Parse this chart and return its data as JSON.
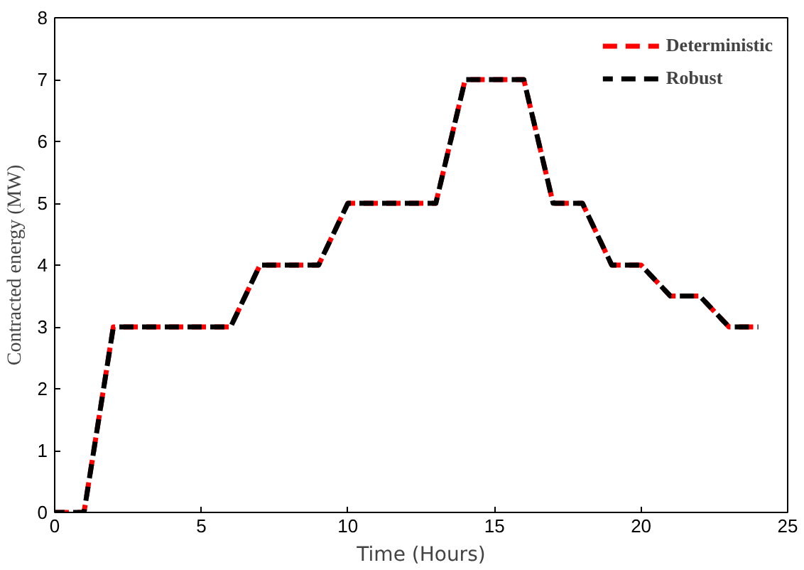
{
  "chart_data": {
    "type": "line",
    "xlabel": "Time (Hours)",
    "ylabel": "Contracted energy (MW)",
    "x": [
      0,
      1,
      2,
      3,
      4,
      5,
      6,
      7,
      8,
      9,
      10,
      11,
      12,
      13,
      14,
      15,
      16,
      17,
      18,
      19,
      20,
      21,
      22,
      23,
      24
    ],
    "series": [
      {
        "name": "Deterministic",
        "color": "#ff0000",
        "values": [
          0,
          0,
          3,
          3,
          3,
          3,
          3,
          4,
          4,
          4,
          5,
          5,
          5,
          5,
          7,
          7,
          7,
          5,
          5,
          4,
          4,
          3.5,
          3.5,
          3,
          3
        ]
      },
      {
        "name": "Robust",
        "color": "#000000",
        "values": [
          0,
          0,
          3,
          3,
          3,
          3,
          3,
          4,
          4,
          4,
          5,
          5,
          5,
          5,
          7,
          7,
          7,
          5,
          5,
          4,
          4,
          3.5,
          3.5,
          3,
          3
        ]
      }
    ],
    "xlim": [
      0,
      25
    ],
    "ylim": [
      0,
      8
    ],
    "xticks": [
      0,
      5,
      10,
      15,
      20,
      25
    ],
    "yticks": [
      0,
      1,
      2,
      3,
      4,
      5,
      6,
      7,
      8
    ],
    "grid": false,
    "legend": "top right",
    "line_style": "dashed",
    "marker": "none"
  }
}
